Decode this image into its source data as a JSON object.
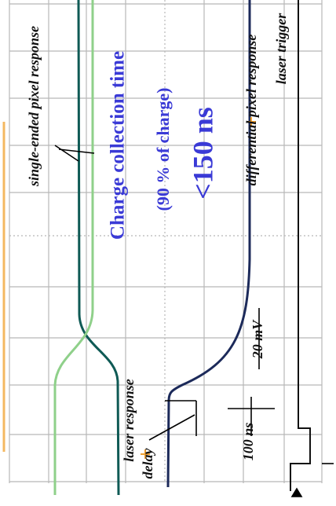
{
  "labels": {
    "single_ended": "single-ended pixel response",
    "charge_time": "Charge collection time",
    "fraction": "(90 % of charge)",
    "time_value": "<150 ns",
    "differential": "differential pixel response",
    "laser_trigger": "laser trigger",
    "laser_response": "laser response",
    "delay": "delay",
    "time_scale": "100 ns",
    "voltage_scale": "20 mV"
  }
}
